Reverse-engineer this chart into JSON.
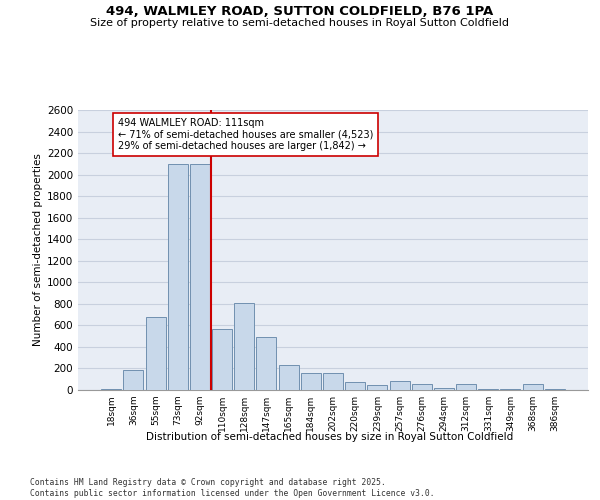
{
  "title": "494, WALMLEY ROAD, SUTTON COLDFIELD, B76 1PA",
  "subtitle": "Size of property relative to semi-detached houses in Royal Sutton Coldfield",
  "xlabel": "Distribution of semi-detached houses by size in Royal Sutton Coldfield",
  "ylabel": "Number of semi-detached properties",
  "categories": [
    "18sqm",
    "36sqm",
    "55sqm",
    "73sqm",
    "92sqm",
    "110sqm",
    "128sqm",
    "147sqm",
    "165sqm",
    "184sqm",
    "202sqm",
    "220sqm",
    "239sqm",
    "257sqm",
    "276sqm",
    "294sqm",
    "312sqm",
    "331sqm",
    "349sqm",
    "368sqm",
    "386sqm"
  ],
  "values": [
    5,
    185,
    680,
    2100,
    2100,
    570,
    810,
    490,
    230,
    155,
    155,
    70,
    45,
    85,
    55,
    20,
    60,
    5,
    5,
    55,
    5
  ],
  "bar_color": "#c8d8ea",
  "bar_edge_color": "#7090b0",
  "grid_color": "#c8d0de",
  "bg_color": "#e8edf5",
  "ref_line_color": "#cc0000",
  "annotation_text": "494 WALMLEY ROAD: 111sqm\n← 71% of semi-detached houses are smaller (4,523)\n29% of semi-detached houses are larger (1,842) →",
  "annotation_box_color": "#ffffff",
  "annotation_box_edge": "#cc0000",
  "footer": "Contains HM Land Registry data © Crown copyright and database right 2025.\nContains public sector information licensed under the Open Government Licence v3.0.",
  "ylim": [
    0,
    2600
  ],
  "yticks": [
    0,
    200,
    400,
    600,
    800,
    1000,
    1200,
    1400,
    1600,
    1800,
    2000,
    2200,
    2400,
    2600
  ]
}
